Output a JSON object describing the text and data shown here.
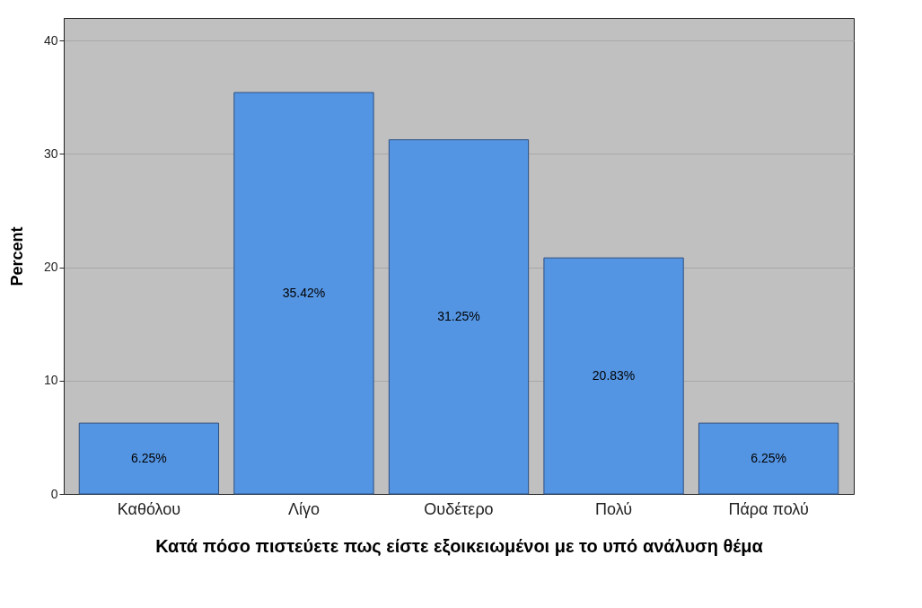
{
  "chart_data": {
    "type": "bar",
    "xlabel": "Κατά πόσο πιστεύετε πως είστε εξοικειωμένοι με το υπό ανάλυση θέμα",
    "ylabel": "Percent",
    "categories": [
      "Καθόλου",
      "Λίγο",
      "Ουδέτερο",
      "Πολύ",
      "Πάρα πολύ"
    ],
    "values": [
      6.25,
      35.42,
      31.25,
      20.83,
      6.25
    ],
    "value_labels": [
      "6.25%",
      "35.42%",
      "31.25%",
      "20.83%",
      "6.25%"
    ],
    "color": "#5495e3",
    "ylim": [
      0,
      42
    ],
    "yticks": [
      0,
      10,
      20,
      30,
      40
    ],
    "grid": "y"
  }
}
